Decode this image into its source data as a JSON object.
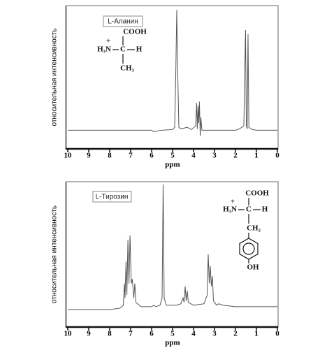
{
  "chart_data": [
    {
      "type": "line",
      "label": "L-Аланин",
      "xlabel": "ppm",
      "ylabel": "относительная интенсивность",
      "molecule": {
        "top": "COOH",
        "charge": "+",
        "left": "H₃N",
        "center": "C",
        "right": "H",
        "bottom": "CH₃"
      },
      "xlim": [
        10,
        0
      ],
      "xticks": [
        10,
        9,
        8,
        7,
        6,
        5,
        4,
        3,
        2,
        1,
        0
      ],
      "ylim": [
        0,
        100
      ],
      "color": "#555555",
      "x": [
        10,
        6,
        5.9,
        5.5,
        5.0,
        4.9,
        4.85,
        4.8,
        4.75,
        4.7,
        4.6,
        4.3,
        4.1,
        3.9,
        3.85,
        3.82,
        3.78,
        3.75,
        3.72,
        3.68,
        3.65,
        3.6,
        3.5,
        2.0,
        1.8,
        1.6,
        1.52,
        1.48,
        1.44,
        1.4,
        1.36,
        1.2,
        1.0,
        0
      ],
      "values": [
        13,
        13,
        12,
        13,
        13.5,
        15,
        50,
        97,
        50,
        15,
        14,
        15,
        13.5,
        16,
        32,
        14,
        30,
        18,
        33,
        9,
        22,
        13,
        13,
        13,
        14,
        16,
        83,
        16,
        14,
        80,
        15,
        13.5,
        13,
        13
      ]
    },
    {
      "type": "line",
      "label": "L-Тирозин",
      "xlabel": "ppm",
      "ylabel": "относительная интенсивность",
      "molecule": {
        "top": "COOH",
        "charge": "+",
        "left": "H₃N",
        "center": "C",
        "right": "H",
        "bottom": "CH₂",
        "ring": "OH"
      },
      "xlim": [
        10,
        0
      ],
      "xticks": [
        10,
        9,
        8,
        7,
        6,
        5,
        4,
        3,
        2,
        1,
        0
      ],
      "ylim": [
        0,
        100
      ],
      "color": "#555555",
      "x": [
        10,
        8,
        7.5,
        7.35,
        7.3,
        7.27,
        7.22,
        7.18,
        7.13,
        7.08,
        7.03,
        6.97,
        6.92,
        6.85,
        6.8,
        6.75,
        6.5,
        6.0,
        5.9,
        5.8,
        5.6,
        5.5,
        5.45,
        5.4,
        5.3,
        4.8,
        4.6,
        4.5,
        4.45,
        4.4,
        4.35,
        4.3,
        4.25,
        4.0,
        3.5,
        3.35,
        3.3,
        3.25,
        3.2,
        3.15,
        3.1,
        3.05,
        2.9,
        2.8,
        2.6,
        2.0,
        0
      ],
      "values": [
        12,
        12,
        13,
        15,
        30,
        20,
        45,
        22,
        60,
        30,
        63,
        30,
        33,
        20,
        30,
        17,
        14,
        14,
        15,
        14,
        15,
        20,
        98,
        20,
        15,
        15,
        16,
        20,
        17,
        28,
        18,
        25,
        17,
        15,
        16,
        22,
        50,
        30,
        42,
        28,
        35,
        18,
        15,
        16,
        15,
        14,
        14
      ]
    }
  ]
}
